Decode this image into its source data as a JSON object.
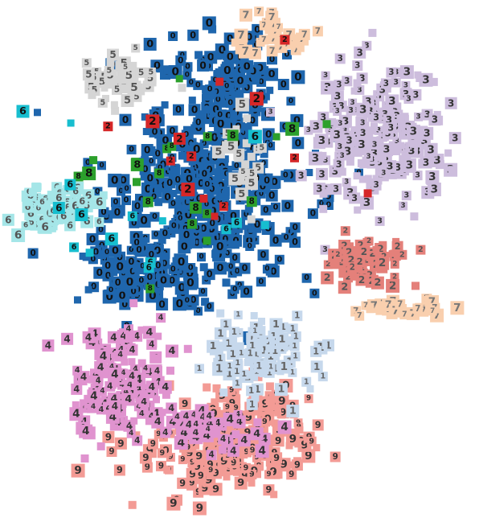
{
  "chart_data": {
    "type": "scatter",
    "title": "",
    "xlabel": "",
    "ylabel": "",
    "xlim": [
      0,
      596
    ],
    "ylim": [
      0,
      644
    ],
    "grid": false,
    "legend": "none",
    "marker": "digit-thumbnail-square",
    "series": [
      {
        "name": "",
        "digit": "0",
        "color": "#1f66ad",
        "glyph_color": "#111111",
        "clusters": [
          {
            "cx": 250,
            "cy": 240,
            "rx": 120,
            "ry": 130,
            "count": 360
          },
          {
            "cx": 280,
            "cy": 110,
            "rx": 70,
            "ry": 70,
            "count": 120
          },
          {
            "cx": 180,
            "cy": 340,
            "rx": 90,
            "ry": 45,
            "count": 110
          }
        ]
      },
      {
        "name": "",
        "digit": "3",
        "color": "#cdbddd",
        "glyph_color": "#333333",
        "clusters": [
          {
            "cx": 470,
            "cy": 170,
            "rx": 85,
            "ry": 80,
            "count": 240
          }
        ]
      },
      {
        "name": "",
        "digit": "9",
        "color": "#f39b95",
        "glyph_color": "#333333",
        "clusters": [
          {
            "cx": 280,
            "cy": 560,
            "rx": 110,
            "ry": 55,
            "count": 200
          },
          {
            "cx": 330,
            "cy": 510,
            "rx": 60,
            "ry": 40,
            "count": 60
          }
        ]
      },
      {
        "name": "",
        "digit": "4",
        "color": "#e093cf",
        "glyph_color": "#333333",
        "clusters": [
          {
            "cx": 150,
            "cy": 470,
            "rx": 60,
            "ry": 70,
            "count": 140
          },
          {
            "cx": 260,
            "cy": 530,
            "rx": 60,
            "ry": 35,
            "count": 50
          }
        ]
      },
      {
        "name": "",
        "digit": "1",
        "color": "#c6d8ec",
        "glyph_color": "#666666",
        "clusters": [
          {
            "cx": 330,
            "cy": 440,
            "rx": 70,
            "ry": 50,
            "count": 110
          }
        ]
      },
      {
        "name": "",
        "digit": "6",
        "color": "#a5e6e8",
        "glyph_color": "#555555",
        "clusters": [
          {
            "cx": 70,
            "cy": 255,
            "rx": 45,
            "ry": 35,
            "count": 80
          }
        ]
      },
      {
        "name": "",
        "digit": "2",
        "color": "#e4807a",
        "glyph_color": "#555555",
        "clusters": [
          {
            "cx": 455,
            "cy": 325,
            "rx": 50,
            "ry": 35,
            "count": 80
          }
        ]
      },
      {
        "name": "",
        "digit": "7",
        "color": "#f9cfae",
        "glyph_color": "#777777",
        "clusters": [
          {
            "cx": 340,
            "cy": 45,
            "rx": 45,
            "ry": 22,
            "count": 35
          },
          {
            "cx": 500,
            "cy": 385,
            "rx": 60,
            "ry": 12,
            "count": 30
          }
        ]
      },
      {
        "name": "",
        "digit": "5",
        "color": "#d5d5d5",
        "glyph_color": "#555555",
        "clusters": [
          {
            "cx": 150,
            "cy": 95,
            "rx": 40,
            "ry": 35,
            "count": 50
          },
          {
            "cx": 300,
            "cy": 200,
            "rx": 25,
            "ry": 50,
            "count": 25
          }
        ]
      },
      {
        "name": "",
        "digit": "8",
        "color": "#2ca02c",
        "glyph_color": "#111111",
        "clusters": [
          {
            "cx": 200,
            "cy": 220,
            "rx": 180,
            "ry": 160,
            "count": 22
          }
        ]
      },
      {
        "name": "",
        "digit": "2",
        "color": "#d62728",
        "glyph_color": "#111111",
        "clusters": [
          {
            "cx": 270,
            "cy": 160,
            "rx": 150,
            "ry": 160,
            "count": 14
          }
        ]
      },
      {
        "name": "",
        "digit": "6",
        "color": "#17becf",
        "glyph_color": "#111111",
        "clusters": [
          {
            "cx": 180,
            "cy": 250,
            "rx": 170,
            "ry": 130,
            "count": 16
          }
        ]
      }
    ]
  }
}
